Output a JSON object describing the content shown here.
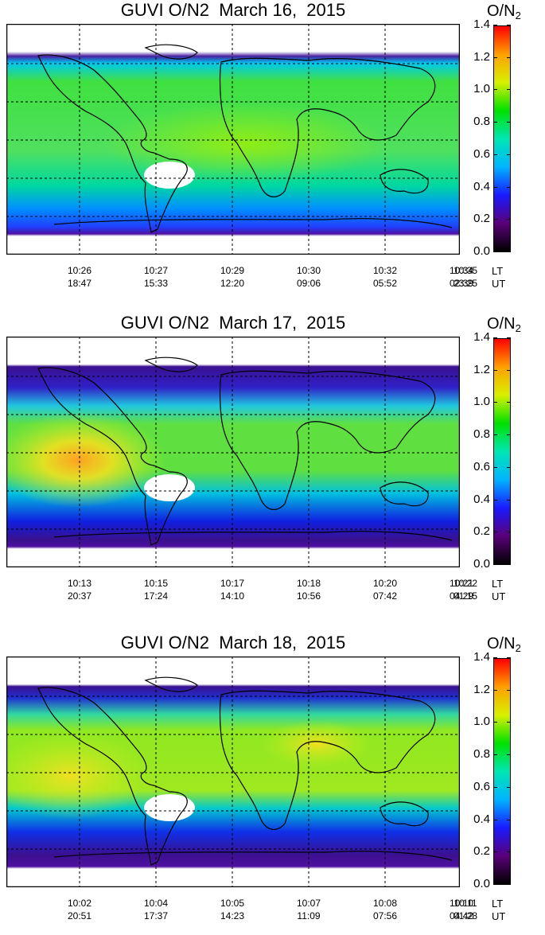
{
  "colorbar": {
    "title_main": "O/N",
    "title_sub": "2",
    "ticks": [
      "1.4",
      "1.2",
      "1.0",
      "0.8",
      "0.6",
      "0.4",
      "0.2",
      "0.0"
    ],
    "range": [
      0.0,
      1.4
    ],
    "colors": [
      "#000000",
      "#5a007a",
      "#1a1aff",
      "#00b4ff",
      "#00e6b4",
      "#00e000",
      "#d8f000",
      "#ffa000",
      "#ff0000"
    ]
  },
  "row_labels": {
    "lt": "LT",
    "ut": "UT"
  },
  "panels": [
    {
      "title": "GUVI O/N2  March 16,  2015",
      "lt": [
        "10:26",
        "10:27",
        "10:29",
        "10:30",
        "10:32",
        "10:34",
        "10:35"
      ],
      "ut": [
        "18:47",
        "15:33",
        "12:20",
        "09:06",
        "05:52",
        "02:39",
        "23:25"
      ]
    },
    {
      "title": "GUVI O/N2  March 17,  2015",
      "lt": [
        "10:13",
        "10:15",
        "10:17",
        "10:18",
        "10:20",
        "10:21",
        "10:22"
      ],
      "ut": [
        "20:37",
        "17:24",
        "14:10",
        "10:56",
        "07:42",
        "04:29",
        "01:15"
      ]
    },
    {
      "title": "GUVI O/N2  March 18,  2015",
      "lt": [
        "10:02",
        "10:04",
        "10:05",
        "10:07",
        "10:08",
        "10:10",
        "10:11"
      ],
      "ut": [
        "20:51",
        "17:37",
        "14:23",
        "11:09",
        "07:56",
        "04:42",
        "01:28"
      ]
    }
  ]
}
